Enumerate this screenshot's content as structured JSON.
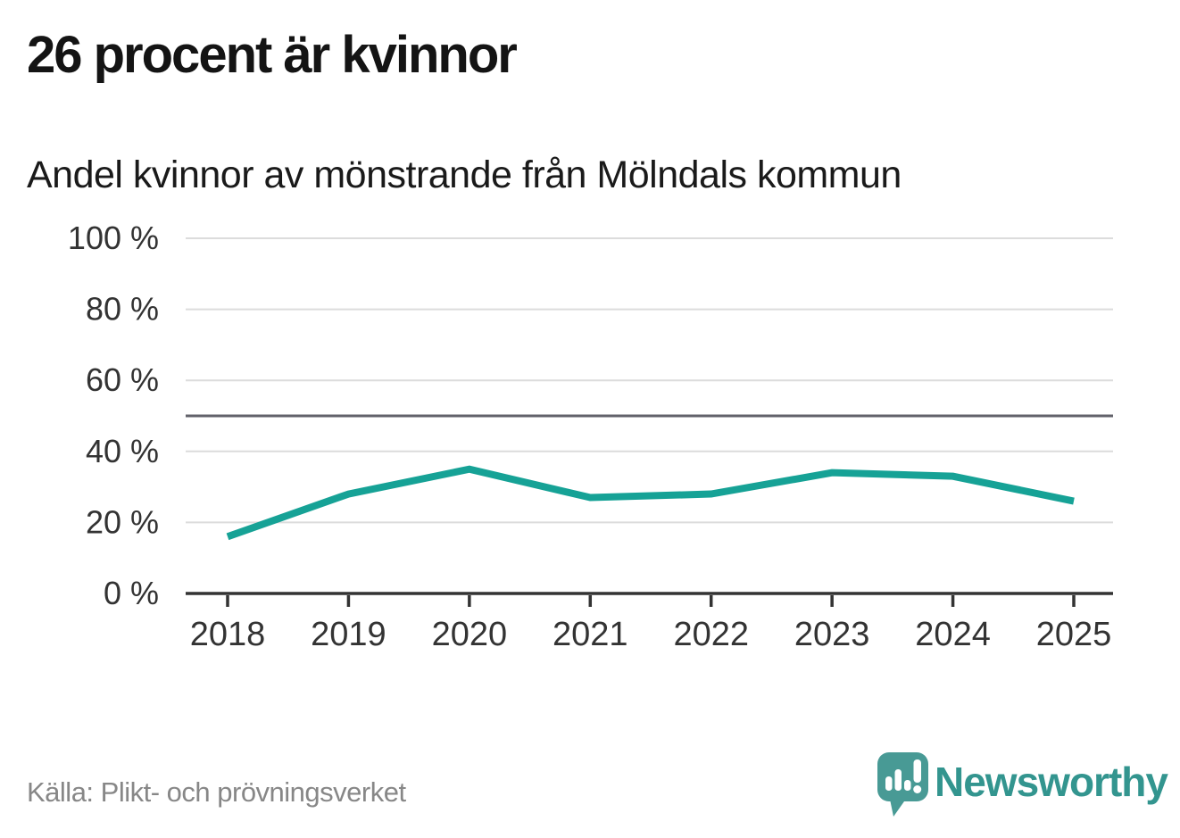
{
  "header": {
    "title": "26 procent är kvinnor",
    "subtitle": "Andel kvinnor av mönstrande från Mölndals kommun"
  },
  "chart_data": {
    "type": "line",
    "title": "26 procent är kvinnor",
    "subtitle": "Andel kvinnor av mönstrande från Mölndals kommun",
    "x": [
      "2018",
      "2019",
      "2020",
      "2021",
      "2022",
      "2023",
      "2024",
      "2025"
    ],
    "series": [
      {
        "name": "Andel kvinnor av mönstrande",
        "values": [
          16,
          28,
          35,
          27,
          28,
          34,
          33,
          26
        ]
      }
    ],
    "unit": "%",
    "ylim": [
      0,
      100
    ],
    "yticks": [
      0,
      20,
      40,
      60,
      80,
      100
    ],
    "ytick_label_format": "{v} %",
    "reference_line": 50,
    "grid": "horizontal",
    "legend": "none",
    "colors": {
      "line": "#16a296",
      "gridline": "#dcdcdc",
      "reference_line": "#62626a",
      "axis": "#333333",
      "tick_label": "#333333"
    }
  },
  "footer": {
    "source": "Källa: Plikt- och prövningsverket",
    "logo_text": "Newsworthy",
    "logo_colors": {
      "mark": "#489a95",
      "wordmark": "#33958f",
      "glyphs": "#ffffff"
    }
  }
}
